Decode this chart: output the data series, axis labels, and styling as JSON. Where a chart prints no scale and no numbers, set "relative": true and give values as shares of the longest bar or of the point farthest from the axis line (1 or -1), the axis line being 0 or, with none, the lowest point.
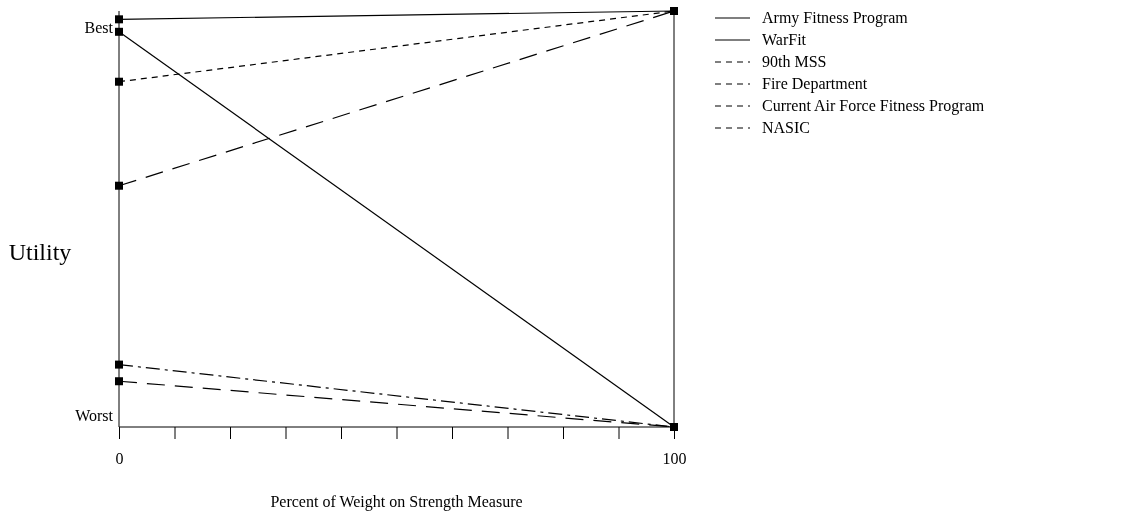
{
  "chart_data": {
    "type": "line",
    "relative": true,
    "xlabel": "Percent of Weight on Strength Measure",
    "ylabel": "Utility",
    "x": [
      0,
      100
    ],
    "xlim": [
      0,
      100
    ],
    "xticks": [
      0,
      {
        "value": 10,
        "label": null
      },
      {
        "value": 20,
        "label": null
      },
      {
        "value": 30,
        "label": null
      },
      {
        "value": 40,
        "label": null
      },
      {
        "value": 50,
        "label": null
      },
      {
        "value": 60,
        "label": null
      },
      {
        "value": 70,
        "label": null
      },
      {
        "value": 80,
        "label": null
      },
      {
        "value": 90,
        "label": null
      },
      100
    ],
    "marker": "square",
    "legend": "right",
    "grid": false,
    "annotations": [
      "Best",
      "Worst"
    ],
    "series": [
      {
        "name": "Army Fitness Program",
        "color": "#000000",
        "line_style": "solid",
        "values": [
          0.98,
          1
        ]
      },
      {
        "name": "WarFit",
        "color": "#000000",
        "line_style": "solid",
        "values": [
          0.95,
          0
        ]
      },
      {
        "name": "90th MSS",
        "color": "#000000",
        "line_style": "dotted",
        "values": [
          0.83,
          1
        ]
      },
      {
        "name": "Fire Department",
        "color": "#000000",
        "line_style": "dashed",
        "values": [
          0.58,
          1
        ]
      },
      {
        "name": "Current Air Force Fitness Program",
        "color": "#000000",
        "line_style": "dashdot",
        "values": [
          0.15,
          0
        ]
      },
      {
        "name": "NASIC",
        "color": "#000000",
        "line_style": "dashed",
        "values": [
          0.11,
          0
        ]
      }
    ]
  }
}
